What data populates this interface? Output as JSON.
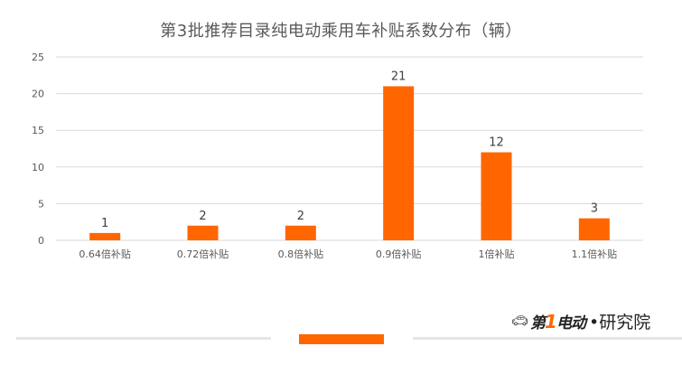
{
  "chart_data": {
    "type": "bar",
    "title": "第3批推荐目录纯电动乘用车补贴系数分布（辆）",
    "categories": [
      "0.64倍补贴",
      "0.72倍补贴",
      "0.8倍补贴",
      "0.9倍补贴",
      "1倍补贴",
      "1.1倍补贴"
    ],
    "values": [
      1,
      2,
      2,
      21,
      12,
      3
    ],
    "ylim": [
      0,
      25
    ],
    "yticks": [
      0,
      5,
      10,
      15,
      20,
      25
    ],
    "grid": true,
    "legend": "none",
    "bar_color": "#ff6600"
  },
  "brand": {
    "car_icon": "car-icon",
    "mark_prefix": "第",
    "mark_one": "1",
    "mark_suffix": "电动",
    "separator": "•",
    "sub": "研究院"
  },
  "colors": {
    "accent": "#ff6600",
    "grid": "#d9d9d9",
    "text": "#595959"
  }
}
